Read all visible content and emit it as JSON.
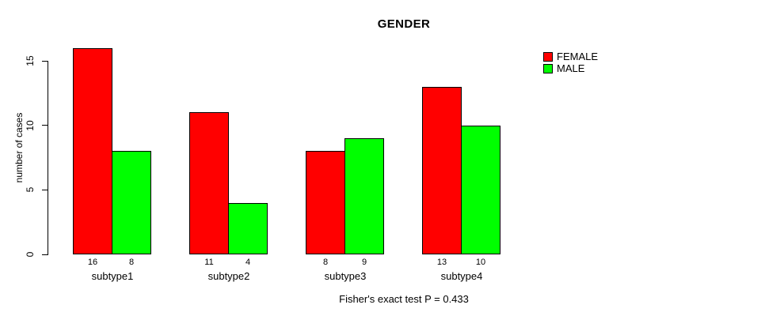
{
  "title": "GENDER",
  "caption": "Fisher's exact test P = 0.433",
  "legend": {
    "items": [
      {
        "label": "FEMALE",
        "color": "#FF0000"
      },
      {
        "label": "MALE",
        "color": "#00FF00"
      }
    ]
  },
  "colors": {
    "female": "#FF0000",
    "male": "#00FF00",
    "axis": "#000000",
    "background": "#FFFFFF"
  },
  "chart_data": {
    "type": "bar",
    "title": "GENDER",
    "categories": [
      "subtype1",
      "subtype2",
      "subtype3",
      "subtype4"
    ],
    "series": [
      {
        "name": "FEMALE",
        "color": "#FF0000",
        "values": [
          16,
          11,
          8,
          13
        ]
      },
      {
        "name": "MALE",
        "color": "#00FF00",
        "values": [
          8,
          4,
          9,
          10
        ]
      }
    ],
    "xlabel": "",
    "ylabel": "number of cases",
    "yticks": [
      0,
      5,
      10,
      15
    ],
    "ylim": [
      0,
      16
    ],
    "grid": false,
    "legend_position": "top-right",
    "bar_value_labels": true,
    "annotation": "Fisher's exact test P = 0.433"
  }
}
